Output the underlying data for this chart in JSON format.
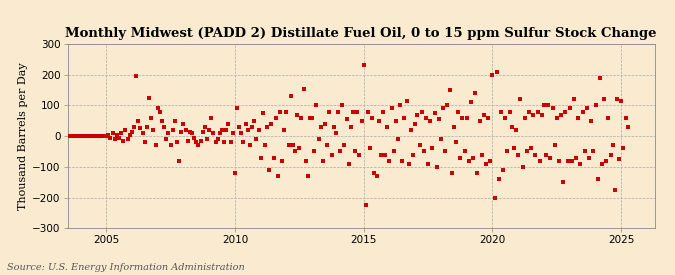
{
  "title": "Monthly Midwest (PADD 2) Distillate Fuel Oil, 0 to 15 ppm Sulfur Stock Change",
  "ylabel": "Thousand Barrels per Day",
  "source_text": "Source: U.S. Energy Information Administration",
  "background_color": "#faebd0",
  "plot_bg_color": "#faebd0",
  "marker_color": "#cc0000",
  "marker": "s",
  "marker_size": 3.5,
  "xlim": [
    2003.5,
    2026.3
  ],
  "ylim": [
    -300,
    300
  ],
  "yticks": [
    -300,
    -200,
    -100,
    0,
    100,
    200,
    300
  ],
  "xticks": [
    2005,
    2010,
    2015,
    2020,
    2025
  ],
  "grid_color": "#aaaaaa",
  "title_fontsize": 9.5,
  "ylabel_fontsize": 8,
  "tick_fontsize": 7.5,
  "source_fontsize": 7,
  "dates": [
    2003.083,
    2003.167,
    2003.25,
    2003.333,
    2003.417,
    2003.5,
    2003.583,
    2003.667,
    2003.75,
    2003.833,
    2003.917,
    2004.0,
    2004.083,
    2004.167,
    2004.25,
    2004.333,
    2004.417,
    2004.5,
    2004.583,
    2004.667,
    2004.75,
    2004.833,
    2004.917,
    2005.0,
    2005.083,
    2005.167,
    2005.25,
    2005.333,
    2005.417,
    2005.5,
    2005.583,
    2005.667,
    2005.75,
    2005.833,
    2005.917,
    2006.0,
    2006.083,
    2006.167,
    2006.25,
    2006.333,
    2006.417,
    2006.5,
    2006.583,
    2006.667,
    2006.75,
    2006.833,
    2006.917,
    2007.0,
    2007.083,
    2007.167,
    2007.25,
    2007.333,
    2007.417,
    2007.5,
    2007.583,
    2007.667,
    2007.75,
    2007.833,
    2007.917,
    2008.0,
    2008.083,
    2008.167,
    2008.25,
    2008.333,
    2008.417,
    2008.5,
    2008.583,
    2008.667,
    2008.75,
    2008.833,
    2008.917,
    2009.0,
    2009.083,
    2009.167,
    2009.25,
    2009.333,
    2009.417,
    2009.5,
    2009.583,
    2009.667,
    2009.75,
    2009.833,
    2009.917,
    2010.0,
    2010.083,
    2010.167,
    2010.25,
    2010.333,
    2010.417,
    2010.5,
    2010.583,
    2010.667,
    2010.75,
    2010.833,
    2010.917,
    2011.0,
    2011.083,
    2011.167,
    2011.25,
    2011.333,
    2011.417,
    2011.5,
    2011.583,
    2011.667,
    2011.75,
    2011.833,
    2011.917,
    2012.0,
    2012.083,
    2012.167,
    2012.25,
    2012.333,
    2012.417,
    2012.5,
    2012.583,
    2012.667,
    2012.75,
    2012.833,
    2012.917,
    2013.0,
    2013.083,
    2013.167,
    2013.25,
    2013.333,
    2013.417,
    2013.5,
    2013.583,
    2013.667,
    2013.75,
    2013.833,
    2013.917,
    2014.0,
    2014.083,
    2014.167,
    2014.25,
    2014.333,
    2014.417,
    2014.5,
    2014.583,
    2014.667,
    2014.75,
    2014.833,
    2014.917,
    2015.0,
    2015.083,
    2015.167,
    2015.25,
    2015.333,
    2015.417,
    2015.5,
    2015.583,
    2015.667,
    2015.75,
    2015.833,
    2015.917,
    2016.0,
    2016.083,
    2016.167,
    2016.25,
    2016.333,
    2016.417,
    2016.5,
    2016.583,
    2016.667,
    2016.75,
    2016.833,
    2016.917,
    2017.0,
    2017.083,
    2017.167,
    2017.25,
    2017.333,
    2017.417,
    2017.5,
    2017.583,
    2017.667,
    2017.75,
    2017.833,
    2017.917,
    2018.0,
    2018.083,
    2018.167,
    2018.25,
    2018.333,
    2018.417,
    2018.5,
    2018.583,
    2018.667,
    2018.75,
    2018.833,
    2018.917,
    2019.0,
    2019.083,
    2019.167,
    2019.25,
    2019.333,
    2019.417,
    2019.5,
    2019.583,
    2019.667,
    2019.75,
    2019.833,
    2019.917,
    2020.0,
    2020.083,
    2020.167,
    2020.25,
    2020.333,
    2020.417,
    2020.5,
    2020.583,
    2020.667,
    2020.75,
    2020.833,
    2020.917,
    2021.0,
    2021.083,
    2021.167,
    2021.25,
    2021.333,
    2021.417,
    2021.5,
    2021.583,
    2021.667,
    2021.75,
    2021.833,
    2021.917,
    2022.0,
    2022.083,
    2022.167,
    2022.25,
    2022.333,
    2022.417,
    2022.5,
    2022.583,
    2022.667,
    2022.75,
    2022.833,
    2022.917,
    2023.0,
    2023.083,
    2023.167,
    2023.25,
    2023.333,
    2023.417,
    2023.5,
    2023.583,
    2023.667,
    2023.75,
    2023.833,
    2023.917,
    2024.0,
    2024.083,
    2024.167,
    2024.25,
    2024.333,
    2024.417,
    2024.5,
    2024.583,
    2024.667,
    2024.75,
    2024.833,
    2024.917,
    2025.0,
    2025.083,
    2025.167,
    2025.25
  ],
  "values": [
    0,
    0,
    0,
    0,
    0,
    0,
    0,
    0,
    0,
    0,
    0,
    0,
    0,
    0,
    0,
    0,
    0,
    0,
    0,
    0,
    0,
    0,
    0,
    0,
    5,
    -5,
    10,
    -10,
    5,
    -5,
    10,
    -15,
    20,
    -10,
    5,
    15,
    30,
    195,
    50,
    25,
    10,
    -20,
    30,
    125,
    60,
    20,
    -30,
    90,
    80,
    50,
    30,
    -10,
    10,
    -30,
    20,
    50,
    -20,
    -80,
    15,
    40,
    20,
    -15,
    15,
    10,
    -5,
    -20,
    -30,
    -15,
    15,
    30,
    -10,
    20,
    60,
    10,
    -20,
    -10,
    10,
    20,
    -20,
    20,
    40,
    -20,
    10,
    -120,
    90,
    30,
    10,
    -20,
    40,
    20,
    -30,
    30,
    50,
    -10,
    20,
    -70,
    75,
    -30,
    30,
    -110,
    40,
    -70,
    60,
    -130,
    80,
    -80,
    20,
    80,
    -30,
    130,
    -30,
    -50,
    70,
    -40,
    60,
    155,
    -80,
    -130,
    60,
    60,
    -50,
    100,
    -10,
    30,
    -80,
    40,
    -30,
    80,
    -60,
    30,
    10,
    80,
    -50,
    100,
    -30,
    55,
    -90,
    30,
    80,
    -50,
    80,
    -60,
    50,
    230,
    -225,
    80,
    -40,
    60,
    -120,
    -130,
    50,
    -60,
    80,
    -60,
    30,
    -80,
    90,
    -50,
    50,
    -10,
    100,
    -80,
    60,
    115,
    -90,
    20,
    -60,
    40,
    70,
    -30,
    80,
    -50,
    60,
    -90,
    50,
    -40,
    75,
    -100,
    55,
    -10,
    90,
    -50,
    100,
    150,
    -120,
    30,
    -20,
    80,
    -70,
    60,
    -50,
    60,
    -80,
    110,
    -70,
    140,
    -120,
    50,
    -60,
    70,
    -90,
    60,
    -80,
    200,
    -200,
    210,
    -140,
    80,
    -110,
    60,
    -50,
    80,
    30,
    -40,
    20,
    -60,
    120,
    -100,
    60,
    -50,
    80,
    -40,
    70,
    -60,
    80,
    -80,
    70,
    100,
    -60,
    100,
    -70,
    90,
    -30,
    60,
    -80,
    70,
    -150,
    80,
    -80,
    90,
    -80,
    120,
    -70,
    60,
    -90,
    80,
    -50,
    90,
    -70,
    50,
    -50,
    100,
    -140,
    190,
    -90,
    120,
    -80,
    60,
    -60,
    -30,
    -175,
    120,
    -75,
    115,
    -40,
    60,
    30
  ]
}
